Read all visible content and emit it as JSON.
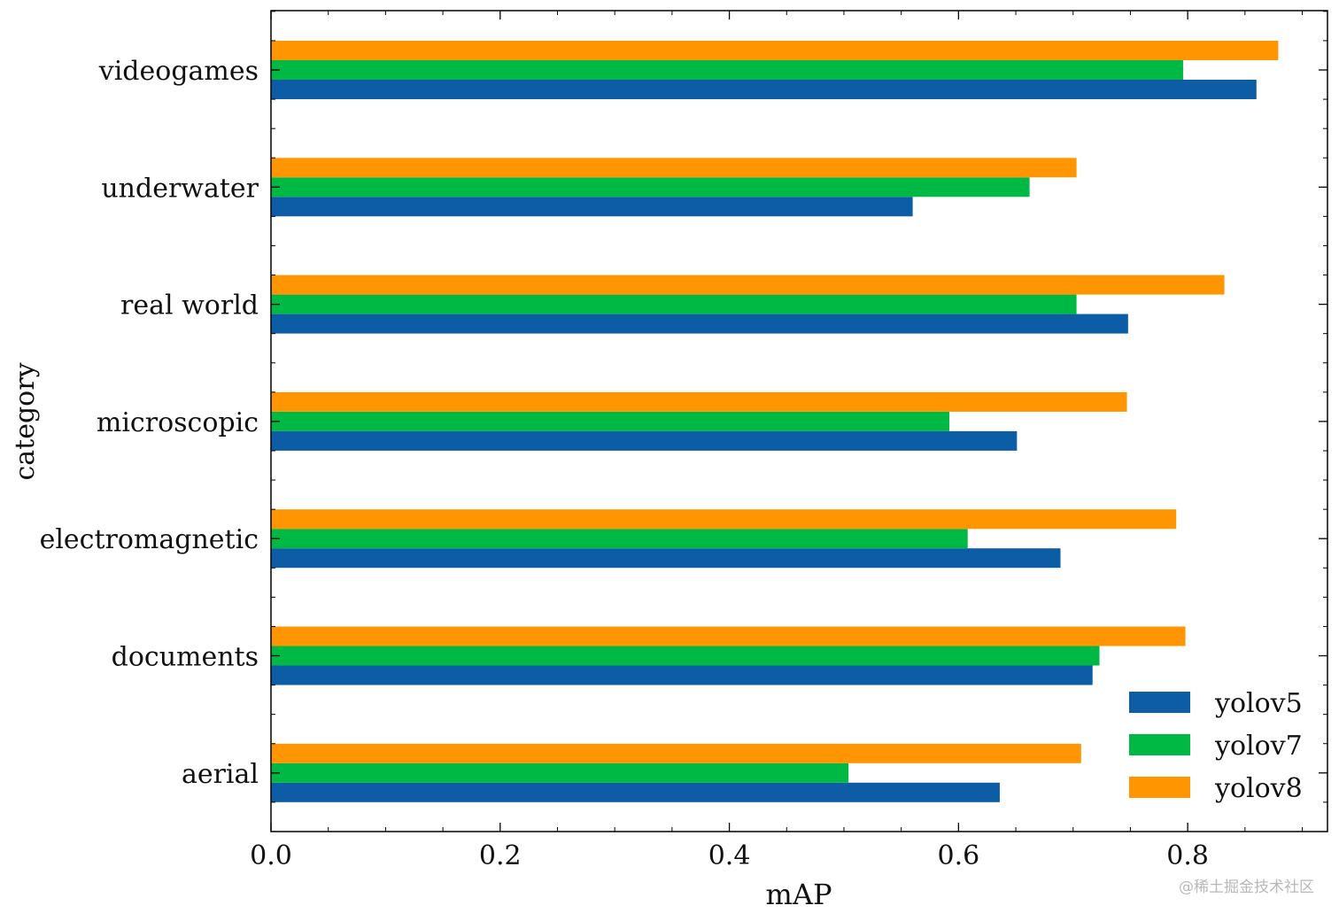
{
  "chart_data": {
    "type": "bar",
    "orientation": "horizontal",
    "xlabel": "mAP",
    "ylabel": "category",
    "xlim": [
      0,
      0.922
    ],
    "xticks": [
      0.0,
      0.2,
      0.4,
      0.6,
      0.8
    ],
    "xtick_labels": [
      "0.0",
      "0.2",
      "0.4",
      "0.6",
      "0.8"
    ],
    "categories": [
      "videogames",
      "underwater",
      "real world",
      "microscopic",
      "electromagnetic",
      "documents",
      "aerial"
    ],
    "series": [
      {
        "name": "yolov5",
        "color": "#0c5da5",
        "values": [
          0.86,
          0.56,
          0.748,
          0.651,
          0.689,
          0.717,
          0.636
        ]
      },
      {
        "name": "yolov7",
        "color": "#00b945",
        "values": [
          0.796,
          0.662,
          0.703,
          0.592,
          0.608,
          0.723,
          0.504
        ]
      },
      {
        "name": "yolov8",
        "color": "#ff9500",
        "values": [
          0.879,
          0.703,
          0.832,
          0.747,
          0.79,
          0.798,
          0.707
        ]
      }
    ],
    "legend_position": "bottom-right",
    "grid": false
  },
  "watermark": "@稀土掘金技术社区"
}
